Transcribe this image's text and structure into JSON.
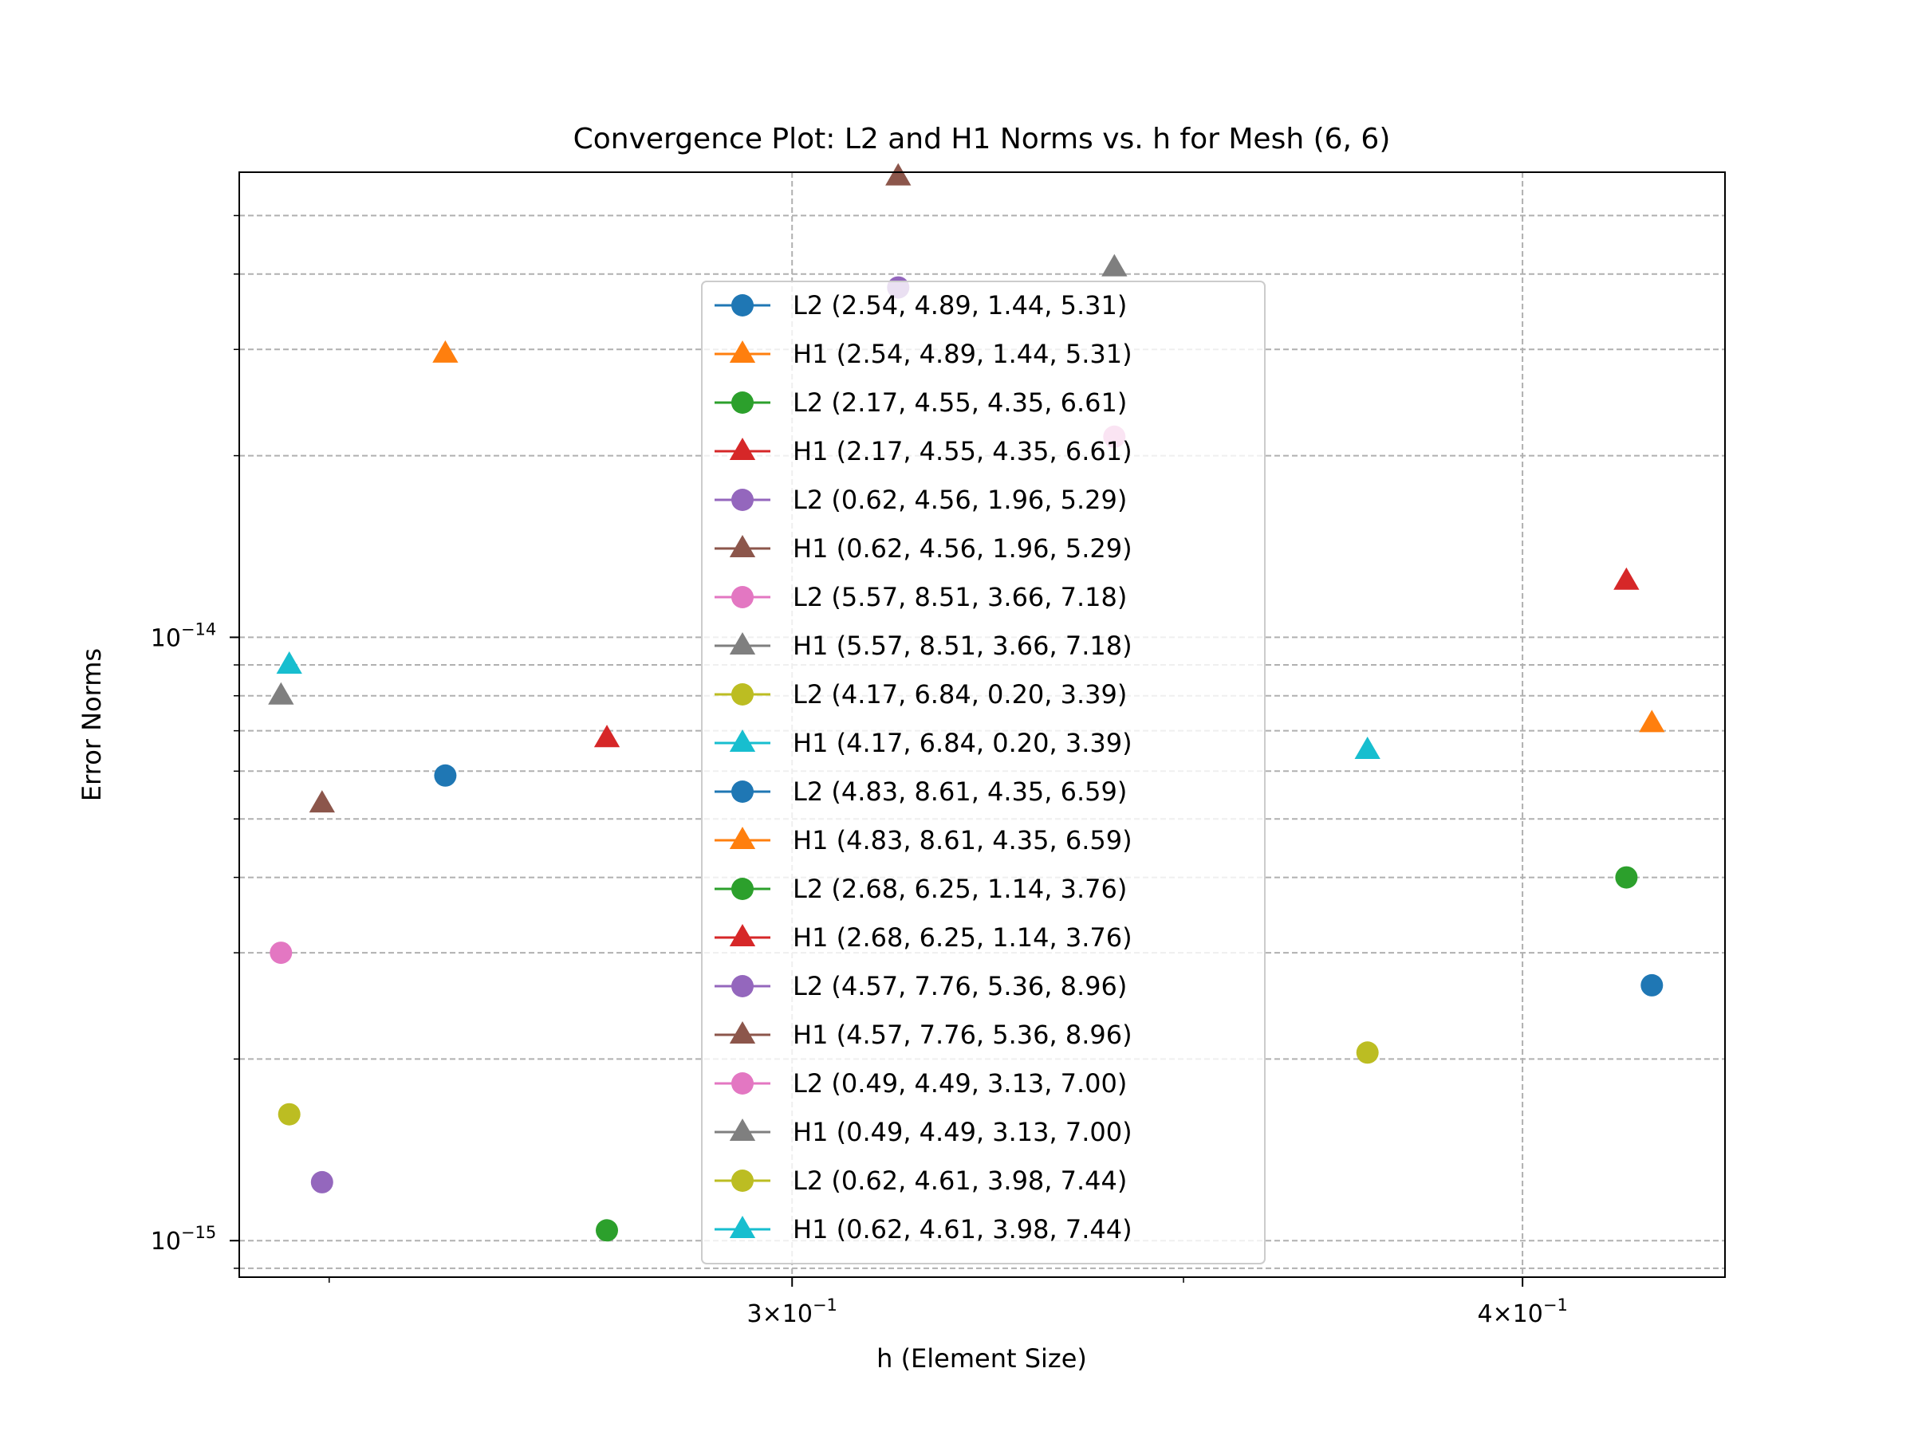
{
  "chart_data": {
    "type": "scatter",
    "title": "Convergence Plot: L2 and H1 Norms vs. h for Mesh (6, 6)",
    "xlabel": "h (Element Size)",
    "ylabel": "Error Norms",
    "x_scale": "log",
    "y_scale": "log",
    "xlim": [
      0.2413,
      0.4332
    ],
    "ylim": [
      8.7e-16,
      5.9e-14
    ],
    "x_ticks": [
      {
        "value": 0.3,
        "base": "3",
        "exp": "−1"
      },
      {
        "value": 0.4,
        "base": "4",
        "exp": "−1"
      }
    ],
    "y_ticks": [
      {
        "value": 1e-15,
        "base": "10",
        "exp": "−15"
      },
      {
        "value": 1e-14,
        "base": "10",
        "exp": "−14"
      }
    ],
    "grid": "both major and minor, dashed",
    "legend_location": "center",
    "series": [
      {
        "name": "L2 (2.54, 4.89, 1.44, 5.31)",
        "marker": "circle",
        "color": "#1f77b4",
        "points": [
          [
            0.2617,
            5.9e-15
          ],
          [
            0.4209,
            2.65e-15
          ]
        ]
      },
      {
        "name": "H1 (2.54, 4.89, 1.44, 5.31)",
        "marker": "triangle",
        "color": "#ff7f0e",
        "points": [
          [
            0.2617,
            2.95e-14
          ],
          [
            0.4209,
            7.2e-15
          ]
        ]
      },
      {
        "name": "L2 (2.17, 4.55, 4.35, 6.61)",
        "marker": "circle",
        "color": "#2ca02c",
        "points": [
          [
            0.2789,
            1.04e-15
          ],
          [
            0.4167,
            4e-15
          ]
        ]
      },
      {
        "name": "H1 (2.17, 4.55, 4.35, 6.61)",
        "marker": "triangle",
        "color": "#d62728",
        "points": [
          [
            0.2789,
            6.8e-15
          ],
          [
            0.4167,
            1.24e-14
          ]
        ]
      },
      {
        "name": "L2 (0.62, 4.56, 1.96, 5.29)",
        "marker": "circle",
        "color": "#9467bd",
        "points": [
          [
            0.2493,
            1.25e-15
          ],
          [
            0.3128,
            3.8e-14
          ]
        ]
      },
      {
        "name": "H1 (0.62, 4.56, 1.96, 5.29)",
        "marker": "triangle",
        "color": "#8c564b",
        "points": [
          [
            0.2493,
            5.3e-15
          ],
          [
            0.3128,
            5.8e-14
          ]
        ]
      },
      {
        "name": "L2 (5.57, 8.51, 3.66, 7.18)",
        "marker": "circle",
        "color": "#e377c2",
        "points": [
          [
            0.2453,
            3e-15
          ],
          [
            0.3406,
            2.15e-14
          ]
        ]
      },
      {
        "name": "H1 (5.57, 8.51, 3.66, 7.18)",
        "marker": "triangle",
        "color": "#7f7f7f",
        "points": [
          [
            0.2453,
            8e-15
          ],
          [
            0.3406,
            4.1e-14
          ]
        ]
      },
      {
        "name": "L2 (4.17, 6.84, 0.20, 3.39)",
        "marker": "circle",
        "color": "#bcbd22",
        "points": [
          [
            0.2461,
            1.62e-15
          ],
          [
            0.3763,
            2.05e-15
          ]
        ]
      },
      {
        "name": "H1 (4.17, 6.84, 0.20, 3.39)",
        "marker": "triangle",
        "color": "#17becf",
        "points": [
          [
            0.2461,
            9e-15
          ],
          [
            0.3763,
            6.5e-15
          ]
        ]
      },
      {
        "name": "L2 (4.83, 8.61, 4.35, 6.59)",
        "marker": "circle",
        "color": "#1f77b4",
        "points": []
      },
      {
        "name": "H1 (4.83, 8.61, 4.35, 6.59)",
        "marker": "triangle",
        "color": "#ff7f0e",
        "points": []
      },
      {
        "name": "L2 (2.68, 6.25, 1.14, 3.76)",
        "marker": "circle",
        "color": "#2ca02c",
        "points": []
      },
      {
        "name": "H1 (2.68, 6.25, 1.14, 3.76)",
        "marker": "triangle",
        "color": "#d62728",
        "points": []
      },
      {
        "name": "L2 (4.57, 7.76, 5.36, 8.96)",
        "marker": "circle",
        "color": "#9467bd",
        "points": []
      },
      {
        "name": "H1 (4.57, 7.76, 5.36, 8.96)",
        "marker": "triangle",
        "color": "#8c564b",
        "points": []
      },
      {
        "name": "L2 (0.49, 4.49, 3.13, 7.00)",
        "marker": "circle",
        "color": "#e377c2",
        "points": []
      },
      {
        "name": "H1 (0.49, 4.49, 3.13, 7.00)",
        "marker": "triangle",
        "color": "#7f7f7f",
        "points": []
      },
      {
        "name": "L2 (0.62, 4.61, 3.98, 7.44)",
        "marker": "circle",
        "color": "#bcbd22",
        "points": []
      },
      {
        "name": "H1 (0.62, 4.61, 3.98, 7.44)",
        "marker": "triangle",
        "color": "#17becf",
        "points": []
      }
    ]
  }
}
